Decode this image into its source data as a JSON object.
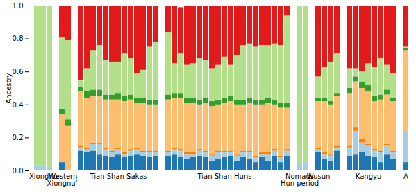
{
  "chart_data": {
    "type": "bar",
    "stacked": true,
    "y_label": "Ancestry",
    "ylim": [
      0,
      1
    ],
    "yticks": [
      {
        "value": 0,
        "label": "0.0"
      },
      {
        "value": 0.2,
        "label": "0.2"
      },
      {
        "value": 0.4,
        "label": "0.4"
      },
      {
        "value": 0.6,
        "label": "0.6"
      },
      {
        "value": 0.8,
        "label": "0.8"
      },
      {
        "value": 1,
        "label": "1.0"
      }
    ],
    "grid": false,
    "categories": [
      null,
      "Xiongnu",
      null,
      null,
      "'Western\nXiongnu'",
      null,
      null,
      null,
      null,
      null,
      null,
      null,
      null,
      "Tian Shan Sakas",
      null,
      null,
      null,
      null,
      null,
      null,
      null,
      null,
      null,
      null,
      null,
      null,
      null,
      null,
      null,
      null,
      "Tian Shan Huns",
      null,
      null,
      null,
      null,
      null,
      null,
      null,
      null,
      null,
      null,
      null,
      "Nomads\nHun period",
      null,
      null,
      "Wusun",
      null,
      null,
      null,
      null,
      null,
      null,
      null,
      "Kangyu",
      null,
      null,
      null,
      null,
      null,
      "A"
    ],
    "series": [
      {
        "color": "#1f78b4",
        "values": [
          0,
          0,
          0,
          null,
          0.05,
          0,
          null,
          0.12,
          0.11,
          0.12,
          0.1,
          0.09,
          0.08,
          0.1,
          0.08,
          0.09,
          0.1,
          0.09,
          0.08,
          0.09,
          null,
          0.09,
          0.1,
          0.08,
          0.07,
          0.08,
          0.09,
          0.08,
          0.06,
          0.07,
          0.08,
          0.09,
          0.06,
          0.08,
          0.07,
          0.05,
          0.08,
          0.06,
          0.09,
          0.05,
          0.09,
          null,
          0,
          0,
          null,
          0.11,
          0.07,
          0.06,
          0.12,
          null,
          0.09,
          0.1,
          0.11,
          0.09,
          0.08,
          0.05,
          0.1,
          0.07,
          null,
          0.05
        ]
      },
      {
        "color": "#a6cee3",
        "values": [
          0.03,
          0.03,
          0.02,
          null,
          0,
          0,
          null,
          0.02,
          0.02,
          0.04,
          0.06,
          0.04,
          0.03,
          0.03,
          0.02,
          0.03,
          0.03,
          0.02,
          0.03,
          0.02,
          null,
          0.02,
          0.03,
          0.04,
          0.03,
          0.02,
          0.03,
          0.03,
          0.03,
          0.04,
          0.03,
          0.02,
          0.03,
          0.03,
          0.04,
          0.03,
          0.02,
          0.04,
          0.03,
          0.03,
          0.03,
          null,
          0.04,
          0.05,
          null,
          0.02,
          0.03,
          0.03,
          0.02,
          null,
          0.05,
          0.14,
          0.06,
          0.06,
          0.04,
          0.06,
          0.05,
          0.04,
          null,
          0.19
        ]
      },
      {
        "color": "#ff7f00",
        "values": [
          0,
          0,
          0,
          null,
          0,
          0,
          null,
          0.01,
          0.01,
          0.01,
          0.01,
          0.01,
          0.01,
          0.01,
          0.01,
          0.01,
          0.01,
          0.01,
          0.01,
          0.01,
          null,
          0.01,
          0.01,
          0.01,
          0.01,
          0.01,
          0.01,
          0.01,
          0.01,
          0.01,
          0.01,
          0.01,
          0.01,
          0.01,
          0.01,
          0.01,
          0.01,
          0.01,
          0.01,
          0.01,
          0.01,
          null,
          0,
          0,
          null,
          0.01,
          0.01,
          0.01,
          0.01,
          null,
          0.01,
          0.02,
          0.02,
          0.01,
          0.01,
          0.01,
          0.01,
          0.01,
          null,
          0
        ]
      },
      {
        "color": "#fdbf6f",
        "values": [
          0,
          0,
          0,
          null,
          0.29,
          0.27,
          null,
          0.33,
          0.3,
          0.28,
          0.28,
          0.29,
          0.31,
          0.29,
          0.31,
          0.3,
          0.27,
          0.29,
          0.28,
          0.28,
          null,
          0.31,
          0.3,
          0.31,
          0.3,
          0.3,
          0.27,
          0.29,
          0.29,
          0.28,
          0.29,
          0.3,
          0.3,
          0.28,
          0.29,
          0.31,
          0.29,
          0.3,
          0.27,
          0.29,
          0.25,
          null,
          0,
          0,
          null,
          0.28,
          0.31,
          0.3,
          0.3,
          null,
          0.32,
          0.28,
          0.31,
          0.32,
          0.29,
          0.31,
          0.3,
          0.3,
          null,
          0.49
        ]
      },
      {
        "color": "#33a02c",
        "values": [
          0,
          0,
          0,
          null,
          0.03,
          0.04,
          null,
          0.03,
          0.04,
          0.04,
          0.04,
          0.03,
          0.03,
          0.04,
          0.03,
          0.03,
          0.03,
          0.03,
          0.03,
          0.03,
          null,
          0.03,
          0.03,
          0.03,
          0.03,
          0.03,
          0.03,
          0.03,
          0.03,
          0.03,
          0.03,
          0.03,
          0.03,
          0.03,
          0.03,
          0.03,
          0.03,
          0.03,
          0.03,
          0.03,
          0.03,
          null,
          0,
          0,
          null,
          0.02,
          0.02,
          0.02,
          0.02,
          null,
          0.03,
          0.03,
          0.04,
          0.04,
          0.03,
          0.03,
          0.03,
          0.02,
          null,
          0.01
        ]
      },
      {
        "color": "#b2df8a",
        "values": [
          0.97,
          0.97,
          0.98,
          null,
          0.44,
          0.48,
          null,
          0.04,
          0.14,
          0.24,
          0.27,
          0.21,
          0.2,
          0.19,
          0.26,
          0.22,
          0.15,
          0.17,
          0.32,
          0.35,
          null,
          0.38,
          0.18,
          0.24,
          0.2,
          0.21,
          0.25,
          0.23,
          0.2,
          0.21,
          0.25,
          0.19,
          0.27,
          0.33,
          0.33,
          0.32,
          0.33,
          0.32,
          0.34,
          0.35,
          0.53,
          null,
          0.96,
          0.95,
          null,
          0.13,
          0.19,
          0.24,
          0.24,
          null,
          0.12,
          0.05,
          0.06,
          0.13,
          0.18,
          0.22,
          0.15,
          0.15,
          null,
          0.01
        ]
      },
      {
        "color": "#e31a1c",
        "values": [
          0,
          0,
          0,
          null,
          0.19,
          0.21,
          null,
          0.45,
          0.38,
          0.27,
          0.24,
          0.33,
          0.34,
          0.34,
          0.29,
          0.32,
          0.41,
          0.39,
          0.25,
          0.22,
          null,
          0.16,
          0.35,
          0.28,
          0.36,
          0.35,
          0.32,
          0.33,
          0.38,
          0.36,
          0.31,
          0.36,
          0.3,
          0.24,
          0.23,
          0.25,
          0.24,
          0.24,
          0.23,
          0.24,
          0.06,
          null,
          0,
          0,
          null,
          0.43,
          0.37,
          0.34,
          0.29,
          null,
          0.38,
          0.38,
          0.4,
          0.35,
          0.37,
          0.32,
          0.36,
          0.41,
          null,
          0.25
        ]
      }
    ]
  }
}
